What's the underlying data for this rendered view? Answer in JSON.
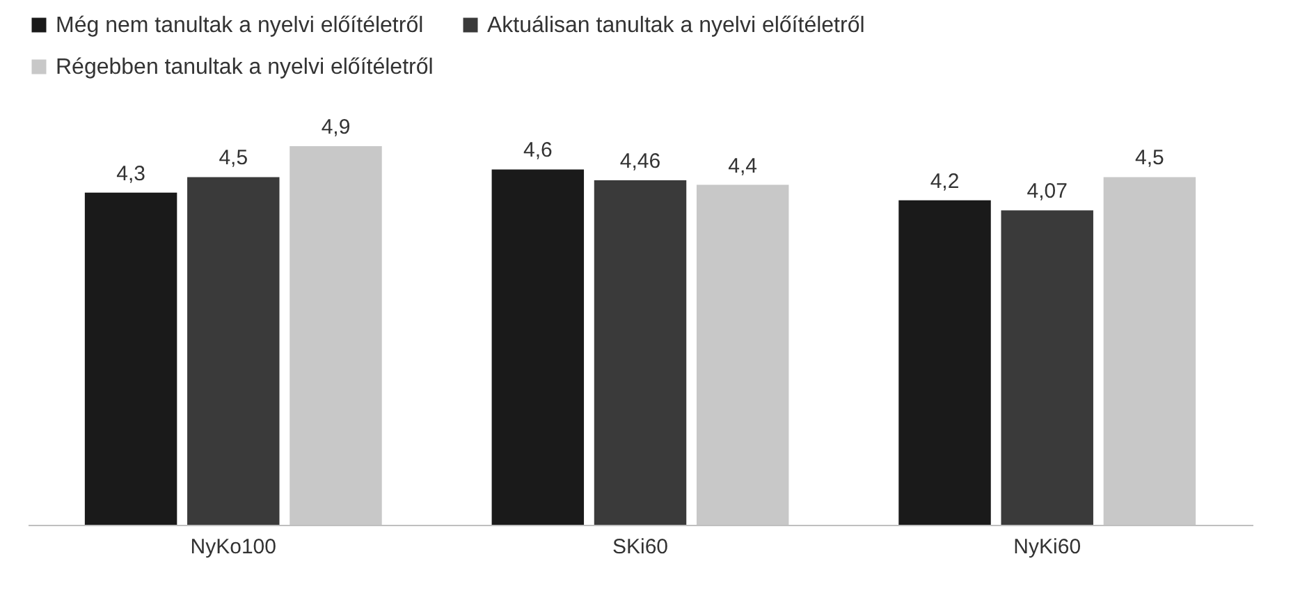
{
  "chart_data": {
    "type": "bar",
    "categories": [
      "NyKo100",
      "SKi60",
      "NyKi60"
    ],
    "series": [
      {
        "name": "Még nem tanultak a nyelvi előítéletről",
        "color": "#1a1a1a",
        "values": [
          4.3,
          4.6,
          4.2
        ],
        "value_labels": [
          "4,3",
          "4,6",
          "4,2"
        ]
      },
      {
        "name": "Aktuálisan tanultak a nyelvi előítéletről",
        "color": "#3a3a3a",
        "values": [
          4.5,
          4.46,
          4.07
        ],
        "value_labels": [
          "4,5",
          "4,46",
          "4,07"
        ]
      },
      {
        "name": "Régebben tanultak a nyelvi előítéletről",
        "color": "#c8c8c8",
        "values": [
          4.9,
          4.4,
          4.5
        ],
        "value_labels": [
          "4,9",
          "4,4",
          "4,5"
        ]
      }
    ],
    "grid": false,
    "legend": "top"
  }
}
